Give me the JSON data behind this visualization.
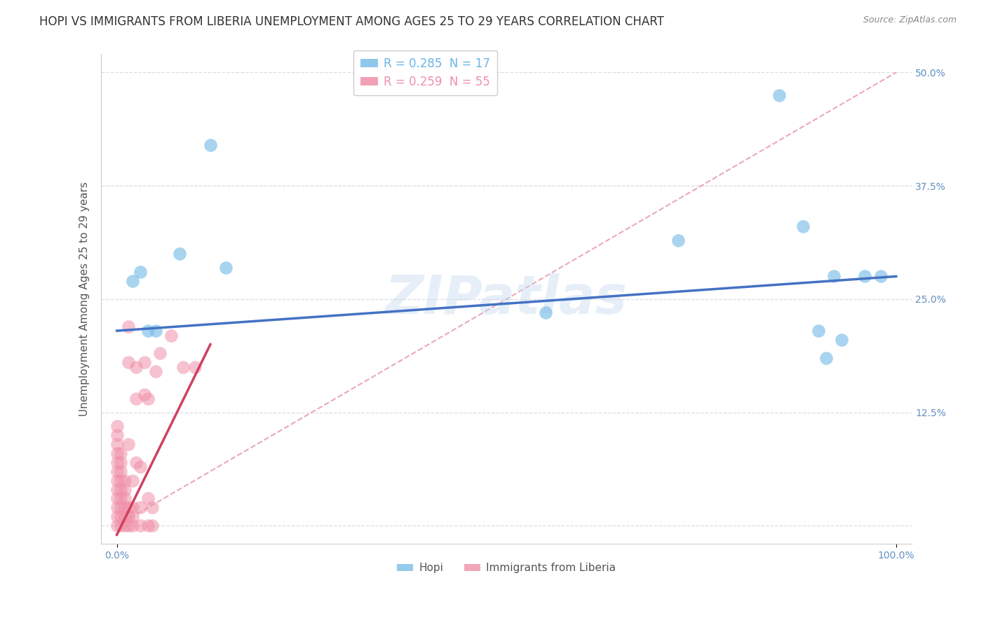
{
  "title": "HOPI VS IMMIGRANTS FROM LIBERIA UNEMPLOYMENT AMONG AGES 25 TO 29 YEARS CORRELATION CHART",
  "source": "Source: ZipAtlas.com",
  "ylabel_label": "Unemployment Among Ages 25 to 29 years",
  "watermark": "ZIPatlas",
  "legend_entries": [
    {
      "label": "R = 0.285  N = 17",
      "color": "#6ab4e8"
    },
    {
      "label": "R = 0.259  N = 55",
      "color": "#f090a8"
    }
  ],
  "hopi_points": [
    [
      0.02,
      0.27
    ],
    [
      0.03,
      0.28
    ],
    [
      0.04,
      0.215
    ],
    [
      0.05,
      0.215
    ],
    [
      0.08,
      0.3
    ],
    [
      0.12,
      0.42
    ],
    [
      0.14,
      0.285
    ],
    [
      0.55,
      0.235
    ],
    [
      0.72,
      0.315
    ],
    [
      0.85,
      0.475
    ],
    [
      0.88,
      0.33
    ],
    [
      0.9,
      0.215
    ],
    [
      0.91,
      0.185
    ],
    [
      0.92,
      0.275
    ],
    [
      0.93,
      0.205
    ],
    [
      0.96,
      0.275
    ],
    [
      0.98,
      0.275
    ]
  ],
  "liberia_points": [
    [
      0.0,
      0.0
    ],
    [
      0.0,
      0.01
    ],
    [
      0.0,
      0.02
    ],
    [
      0.0,
      0.03
    ],
    [
      0.0,
      0.04
    ],
    [
      0.0,
      0.05
    ],
    [
      0.0,
      0.06
    ],
    [
      0.0,
      0.07
    ],
    [
      0.0,
      0.08
    ],
    [
      0.0,
      0.09
    ],
    [
      0.0,
      0.1
    ],
    [
      0.0,
      0.11
    ],
    [
      0.005,
      0.0
    ],
    [
      0.005,
      0.01
    ],
    [
      0.005,
      0.02
    ],
    [
      0.005,
      0.03
    ],
    [
      0.005,
      0.04
    ],
    [
      0.005,
      0.05
    ],
    [
      0.005,
      0.06
    ],
    [
      0.005,
      0.07
    ],
    [
      0.005,
      0.08
    ],
    [
      0.01,
      0.0
    ],
    [
      0.01,
      0.01
    ],
    [
      0.01,
      0.02
    ],
    [
      0.01,
      0.03
    ],
    [
      0.01,
      0.04
    ],
    [
      0.01,
      0.05
    ],
    [
      0.015,
      0.0
    ],
    [
      0.015,
      0.01
    ],
    [
      0.015,
      0.02
    ],
    [
      0.015,
      0.09
    ],
    [
      0.015,
      0.18
    ],
    [
      0.015,
      0.22
    ],
    [
      0.02,
      0.0
    ],
    [
      0.02,
      0.01
    ],
    [
      0.02,
      0.02
    ],
    [
      0.02,
      0.05
    ],
    [
      0.025,
      0.07
    ],
    [
      0.025,
      0.14
    ],
    [
      0.025,
      0.175
    ],
    [
      0.03,
      0.0
    ],
    [
      0.03,
      0.02
    ],
    [
      0.03,
      0.065
    ],
    [
      0.035,
      0.145
    ],
    [
      0.035,
      0.18
    ],
    [
      0.04,
      0.0
    ],
    [
      0.04,
      0.03
    ],
    [
      0.04,
      0.14
    ],
    [
      0.045,
      0.0
    ],
    [
      0.045,
      0.02
    ],
    [
      0.05,
      0.17
    ],
    [
      0.055,
      0.19
    ],
    [
      0.07,
      0.21
    ],
    [
      0.085,
      0.175
    ],
    [
      0.1,
      0.175
    ]
  ],
  "hopi_color": "#7bbde8",
  "liberia_color": "#f090a8",
  "hopi_line_color": "#4472C4",
  "liberia_line_color": "#D04060",
  "diagonal_color": "#e8a0b0",
  "bg_color": "#ffffff",
  "xlim": [
    -0.02,
    1.02
  ],
  "ylim": [
    -0.02,
    0.52
  ],
  "hopi_line": [
    [
      0.0,
      0.215
    ],
    [
      1.0,
      0.275
    ]
  ],
  "liberia_line": [
    [
      0.0,
      -0.01
    ],
    [
      0.12,
      0.2
    ]
  ],
  "diagonal_line": [
    [
      0.0,
      0.0
    ],
    [
      1.0,
      0.5
    ]
  ],
  "title_fontsize": 12,
  "axis_label_fontsize": 11,
  "tick_fontsize": 10,
  "legend_fontsize": 12
}
